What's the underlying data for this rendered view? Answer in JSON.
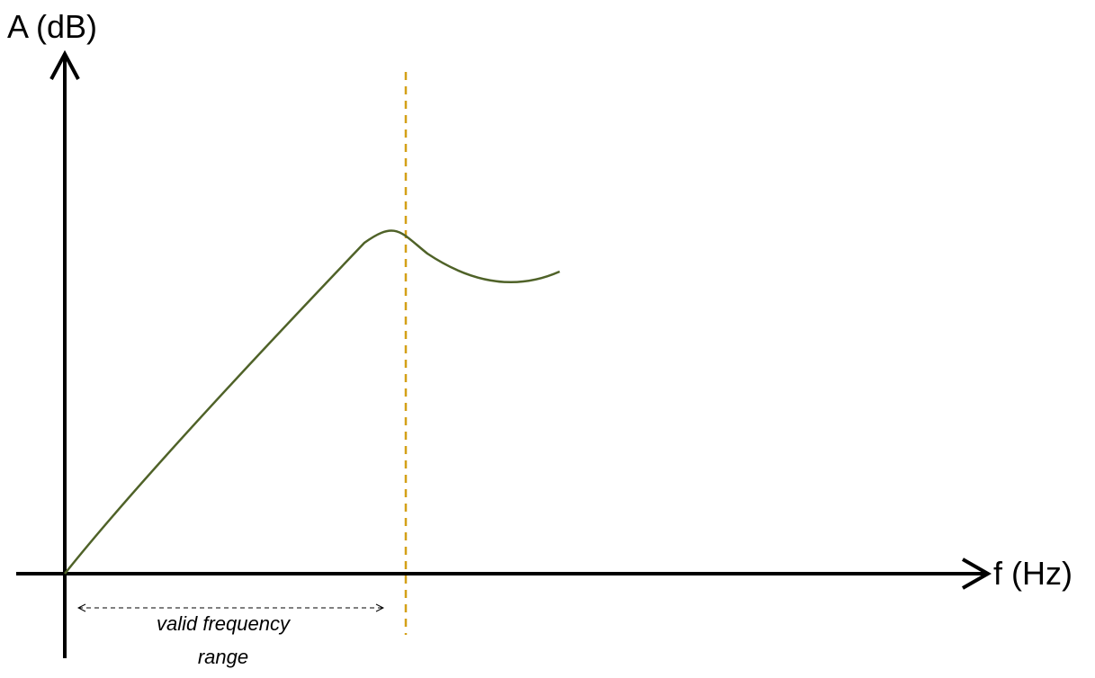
{
  "diagram": {
    "y_axis_label": "A (dB)",
    "x_axis_label": "f (Hz)",
    "range_label_line1": "valid frequency",
    "range_label_line2": "range",
    "colors": {
      "axis": "#000000",
      "response_curve": "#4f6228",
      "cutoff_line": "#d4a017",
      "range_arrow": "#000000"
    }
  }
}
